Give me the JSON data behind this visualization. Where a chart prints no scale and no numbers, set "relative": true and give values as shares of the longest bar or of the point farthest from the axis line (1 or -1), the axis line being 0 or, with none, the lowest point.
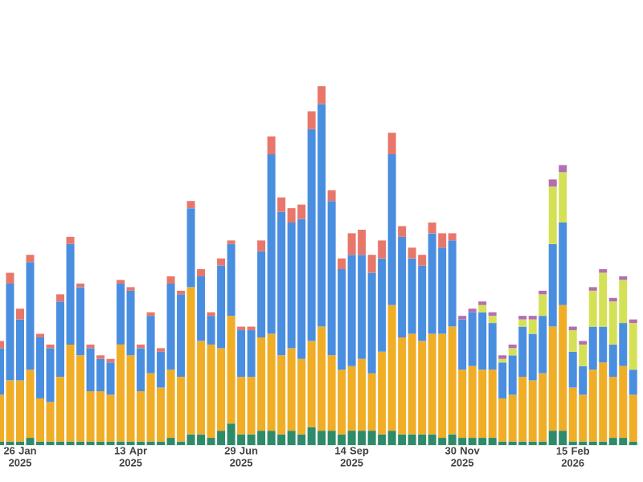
{
  "chart_data": {
    "type": "bar",
    "stacked": true,
    "relative": true,
    "categories": [
      null,
      null,
      "26 Jan 2025",
      null,
      null,
      null,
      null,
      null,
      null,
      null,
      null,
      null,
      null,
      "13 Apr 2025",
      null,
      null,
      null,
      null,
      null,
      null,
      null,
      null,
      null,
      null,
      "29 Jun 2025",
      null,
      null,
      null,
      null,
      null,
      null,
      null,
      null,
      null,
      null,
      "14 Sep 2025",
      null,
      null,
      null,
      null,
      null,
      null,
      null,
      null,
      null,
      null,
      "30 Nov 2025",
      null,
      null,
      null,
      null,
      null,
      null,
      null,
      null,
      null,
      null,
      "15 Feb 2026",
      null,
      null,
      null,
      null,
      null,
      null
    ],
    "series": [
      {
        "color": "#2e8b6a",
        "values": [
          0.01,
          0.01,
          0.01,
          0.02,
          0.01,
          0.01,
          0.01,
          0.01,
          0.01,
          0.01,
          0.01,
          0.01,
          0.01,
          0.01,
          0.01,
          0.01,
          0.01,
          0.02,
          0.01,
          0.03,
          0.03,
          0.02,
          0.04,
          0.06,
          0.03,
          0.03,
          0.04,
          0.04,
          0.03,
          0.04,
          0.03,
          0.05,
          0.04,
          0.04,
          0.03,
          0.04,
          0.04,
          0.04,
          0.03,
          0.04,
          0.03,
          0.03,
          0.03,
          0.03,
          0.02,
          0.03,
          0.02,
          0.02,
          0.02,
          0.02,
          0.01,
          0.01,
          0.01,
          0.01,
          0.01,
          0.04,
          0.04,
          0.01,
          0.01,
          0.01,
          0.01,
          0.02,
          0.02,
          0.01
        ]
      },
      {
        "color": "#f0ad26",
        "values": [
          0.13,
          0.17,
          0.17,
          0.19,
          0.12,
          0.11,
          0.18,
          0.27,
          0.24,
          0.14,
          0.14,
          0.13,
          0.27,
          0.24,
          0.14,
          0.19,
          0.15,
          0.19,
          0.18,
          0.41,
          0.26,
          0.26,
          0.23,
          0.3,
          0.16,
          0.16,
          0.26,
          0.27,
          0.22,
          0.23,
          0.21,
          0.24,
          0.29,
          0.21,
          0.18,
          0.18,
          0.2,
          0.16,
          0.23,
          0.35,
          0.27,
          0.28,
          0.26,
          0.28,
          0.29,
          0.3,
          0.19,
          0.2,
          0.19,
          0.19,
          0.12,
          0.13,
          0.18,
          0.17,
          0.19,
          0.29,
          0.35,
          0.15,
          0.13,
          0.2,
          0.22,
          0.17,
          0.2,
          0.13
        ]
      },
      {
        "color": "#4a8ee0",
        "values": [
          0.13,
          0.27,
          0.17,
          0.3,
          0.17,
          0.15,
          0.21,
          0.28,
          0.19,
          0.12,
          0.09,
          0.09,
          0.17,
          0.18,
          0.12,
          0.16,
          0.1,
          0.24,
          0.23,
          0.22,
          0.18,
          0.08,
          0.23,
          0.2,
          0.13,
          0.13,
          0.24,
          0.5,
          0.4,
          0.35,
          0.39,
          0.59,
          0.62,
          0.43,
          0.28,
          0.31,
          0.29,
          0.28,
          0.26,
          0.42,
          0.28,
          0.21,
          0.21,
          0.28,
          0.24,
          0.24,
          0.14,
          0.15,
          0.16,
          0.13,
          0.1,
          0.11,
          0.14,
          0.13,
          0.16,
          0.23,
          0.23,
          0.1,
          0.08,
          0.12,
          0.1,
          0.09,
          0.12,
          0.07
        ]
      },
      {
        "color": "#d4e157",
        "values": [
          null,
          null,
          null,
          null,
          null,
          null,
          null,
          null,
          null,
          null,
          null,
          null,
          null,
          null,
          null,
          null,
          null,
          null,
          null,
          null,
          null,
          null,
          null,
          null,
          null,
          null,
          null,
          null,
          null,
          null,
          null,
          null,
          null,
          null,
          null,
          null,
          null,
          null,
          null,
          null,
          null,
          null,
          null,
          null,
          null,
          null,
          null,
          null,
          0.02,
          0.02,
          0.01,
          0.02,
          0.02,
          0.04,
          0.06,
          0.16,
          0.14,
          0.06,
          0.06,
          0.1,
          0.15,
          0.12,
          0.12,
          0.13
        ]
      },
      {
        "color": "#e8776b",
        "values": [
          0.02,
          0.03,
          0.03,
          0.02,
          0.01,
          0.01,
          0.02,
          0.02,
          0.01,
          0.01,
          0.01,
          0.01,
          0.01,
          0.01,
          0.01,
          0.01,
          0.01,
          0.02,
          0.01,
          0.02,
          0.02,
          0.01,
          0.02,
          0.01,
          0.01,
          0.01,
          0.03,
          0.05,
          0.04,
          0.04,
          0.04,
          0.05,
          0.05,
          0.03,
          0.03,
          0.06,
          0.07,
          0.05,
          0.05,
          0.06,
          0.03,
          0.03,
          0.03,
          0.03,
          0.04,
          0.02,
          null,
          null,
          null,
          null,
          null,
          null,
          null,
          null,
          null,
          null,
          null,
          null,
          null,
          null,
          null,
          null,
          null,
          null
        ]
      },
      {
        "color": "#b36fb0",
        "values": [
          null,
          null,
          null,
          null,
          null,
          null,
          null,
          null,
          null,
          null,
          null,
          null,
          null,
          null,
          null,
          null,
          null,
          null,
          null,
          null,
          null,
          null,
          null,
          null,
          null,
          null,
          null,
          null,
          null,
          null,
          null,
          null,
          null,
          null,
          null,
          null,
          null,
          null,
          null,
          null,
          null,
          null,
          null,
          null,
          null,
          null,
          0.01,
          0.01,
          0.01,
          0.01,
          0.01,
          0.01,
          0.01,
          0.01,
          0.01,
          0.02,
          0.02,
          0.01,
          0.01,
          0.01,
          0.01,
          0.01,
          0.01,
          0.01
        ]
      }
    ]
  }
}
